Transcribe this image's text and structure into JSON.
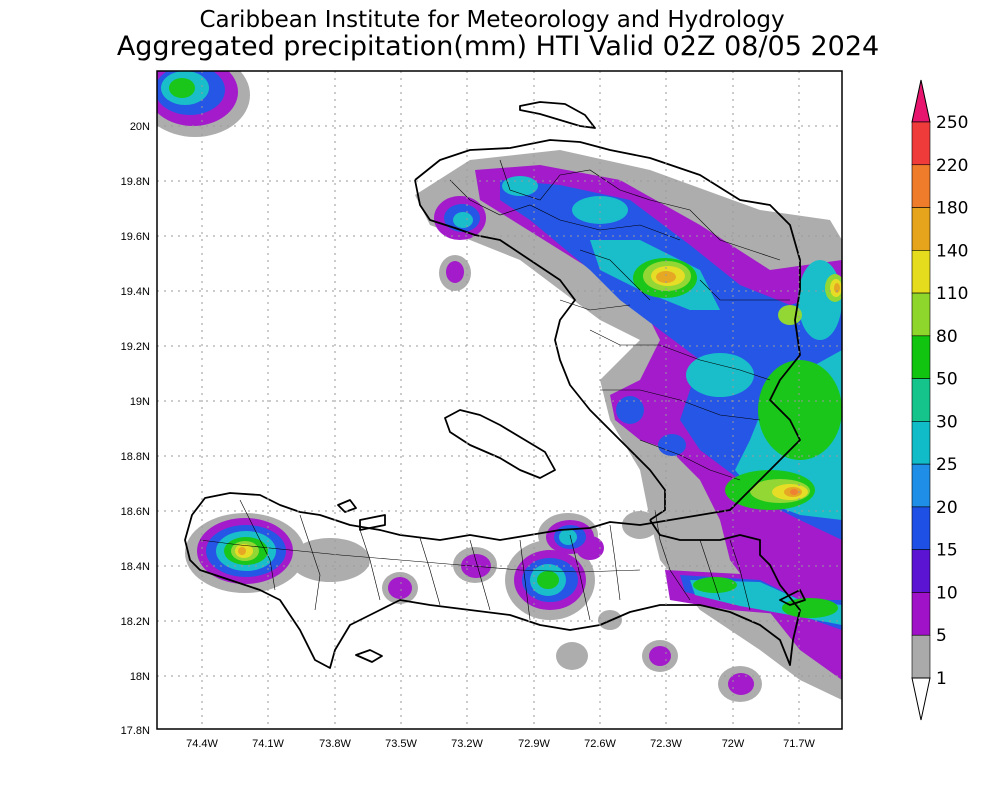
{
  "header": {
    "institute": "Caribbean Institute for Meteorology and Hydrology",
    "product": "Aggregated precipitation(mm) HTI Valid 02Z 08/05 2024"
  },
  "axes": {
    "x_ticks": [
      "74.4W",
      "74.1W",
      "73.8W",
      "73.5W",
      "73.2W",
      "72.9W",
      "72.6W",
      "72.3W",
      "72W",
      "71.7W"
    ],
    "y_ticks": [
      "20N",
      "19.8N",
      "19.6N",
      "19.4N",
      "19.2N",
      "19N",
      "18.8N",
      "18.6N",
      "18.4N",
      "18.2N",
      "18N",
      "17.8N"
    ]
  },
  "colorbar": {
    "labels": [
      "250",
      "220",
      "180",
      "140",
      "110",
      "80",
      "50",
      "30",
      "25",
      "20",
      "15",
      "10",
      "5",
      "1"
    ],
    "colors": [
      "#e8156e",
      "#f03b3b",
      "#ef7c2a",
      "#e6a41c",
      "#e6dc1e",
      "#8ed62c",
      "#10c410",
      "#14c48a",
      "#10bcc8",
      "#1e8ee6",
      "#1e50e6",
      "#5a14d2",
      "#a012c8",
      "#aaaaaa",
      "#ffffff"
    ]
  },
  "map": {
    "region": "HTI",
    "precip_levels_mm": [
      1,
      5,
      10,
      15,
      20,
      25,
      30,
      50,
      80,
      110,
      140,
      180,
      220,
      250
    ]
  }
}
